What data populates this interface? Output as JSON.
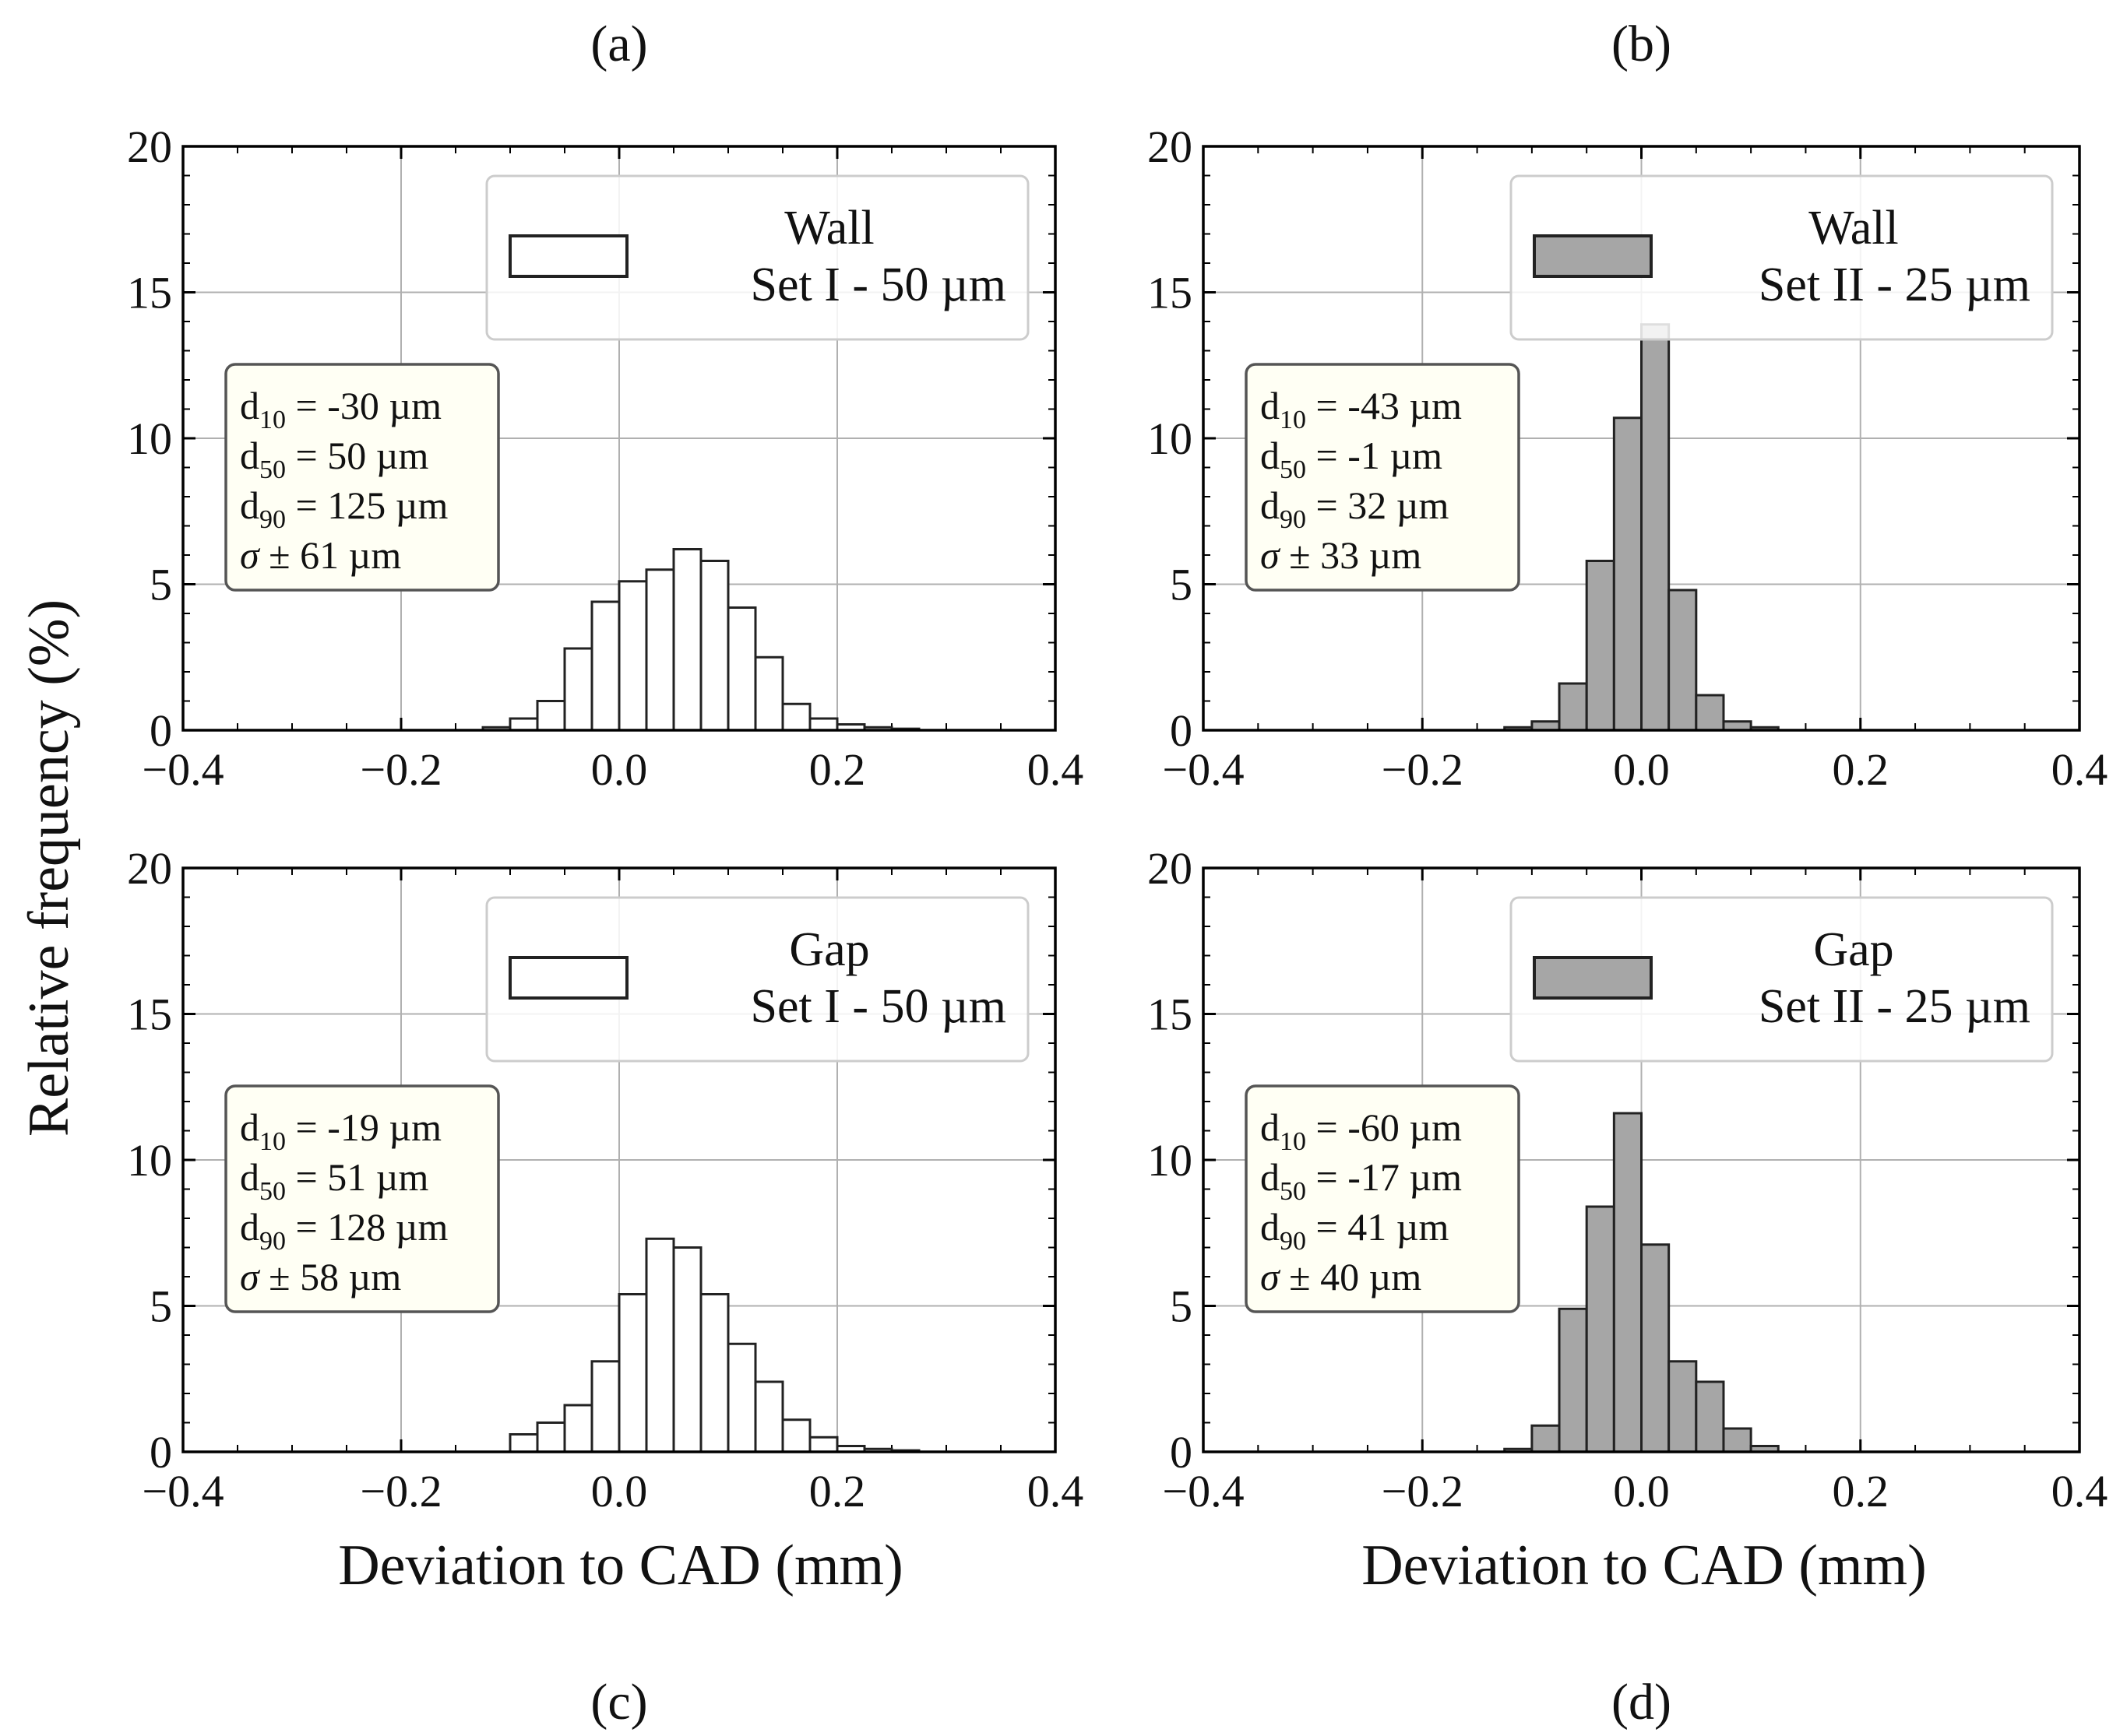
{
  "figure": {
    "ylabel": "Relative frequency (%)",
    "xlabel": "Deviation to CAD (mm)",
    "bin_width": 0.025,
    "colors": {
      "set1_fill": "#ffffff",
      "set2_fill": "#a6a6a6",
      "edge": "#222222",
      "grid": "#b0b0b0",
      "stats_box": "#fffff4"
    }
  },
  "chart_data": [
    {
      "type": "bar",
      "panel_label": "(a)",
      "legend": {
        "line1": "Wall",
        "line2": "Set I - 50 µm",
        "placement": "top-right",
        "fill": "set1"
      },
      "stats": {
        "d10_value": " = -30 µm",
        "d50_value": " = 50 µm",
        "d90_value": " = 125 µm",
        "sigma_value": " ± 61 µm"
      },
      "bin_starts": [
        -0.125,
        -0.1,
        -0.075,
        -0.05,
        -0.025,
        0.0,
        0.025,
        0.05,
        0.075,
        0.1,
        0.125,
        0.15,
        0.175,
        0.2,
        0.225,
        0.25
      ],
      "values": [
        0.1,
        0.4,
        1.0,
        2.8,
        4.4,
        5.1,
        5.5,
        6.2,
        5.8,
        4.2,
        2.5,
        0.9,
        0.4,
        0.2,
        0.1,
        0.05
      ],
      "xlim": [
        -0.4,
        0.4
      ],
      "ylim": [
        0,
        20
      ],
      "xticks": [
        "−0.4",
        "−0.2",
        "0.0",
        "0.2",
        "0.4"
      ],
      "yticks": [
        "0",
        "5",
        "10",
        "15",
        "20"
      ],
      "grid": true
    },
    {
      "type": "bar",
      "panel_label": "(b)",
      "legend": {
        "line1": "Wall",
        "line2": "Set II - 25 µm",
        "placement": "top-right",
        "fill": "set2"
      },
      "stats": {
        "d10_value": " = -43 µm",
        "d50_value": " = -1 µm",
        "d90_value": " = 32 µm",
        "sigma_value": " ± 33 µm"
      },
      "bin_starts": [
        -0.125,
        -0.1,
        -0.075,
        -0.05,
        -0.025,
        0.0,
        0.025,
        0.05,
        0.075,
        0.1
      ],
      "values": [
        0.1,
        0.3,
        1.6,
        5.8,
        10.7,
        13.9,
        4.8,
        1.2,
        0.3,
        0.1
      ],
      "xlim": [
        -0.4,
        0.4
      ],
      "ylim": [
        0,
        20
      ],
      "xticks": [
        "−0.4",
        "−0.2",
        "0.0",
        "0.2",
        "0.4"
      ],
      "yticks": [
        "0",
        "5",
        "10",
        "15",
        "20"
      ],
      "grid": true
    },
    {
      "type": "bar",
      "panel_label": "(c)",
      "legend": {
        "line1": "Gap",
        "line2": "Set I - 50 µm",
        "placement": "top-right",
        "fill": "set1"
      },
      "stats": {
        "d10_value": " = -19 µm",
        "d50_value": " = 51 µm",
        "d90_value": " = 128 µm",
        "sigma_value": " ± 58 µm"
      },
      "bin_starts": [
        -0.1,
        -0.075,
        -0.05,
        -0.025,
        0.0,
        0.025,
        0.05,
        0.075,
        0.1,
        0.125,
        0.15,
        0.175,
        0.2,
        0.225,
        0.25
      ],
      "values": [
        0.6,
        1.0,
        1.6,
        3.1,
        5.4,
        7.3,
        7.0,
        5.4,
        3.7,
        2.4,
        1.1,
        0.5,
        0.2,
        0.1,
        0.05
      ],
      "xlim": [
        -0.4,
        0.4
      ],
      "ylim": [
        0,
        20
      ],
      "xticks": [
        "−0.4",
        "−0.2",
        "0.0",
        "0.2",
        "0.4"
      ],
      "yticks": [
        "0",
        "5",
        "10",
        "15",
        "20"
      ],
      "grid": true
    },
    {
      "type": "bar",
      "panel_label": "(d)",
      "legend": {
        "line1": "Gap",
        "line2": "Set II - 25 µm",
        "placement": "top-right",
        "fill": "set2"
      },
      "stats": {
        "d10_value": " = -60 µm",
        "d50_value": " = -17 µm",
        "d90_value": " = 41 µm",
        "sigma_value": " ± 40 µm"
      },
      "bin_starts": [
        -0.125,
        -0.1,
        -0.075,
        -0.05,
        -0.025,
        0.0,
        0.025,
        0.05,
        0.075,
        0.1
      ],
      "values": [
        0.1,
        0.9,
        4.9,
        8.4,
        11.6,
        7.1,
        3.1,
        2.4,
        0.8,
        0.2
      ],
      "xlim": [
        -0.4,
        0.4
      ],
      "ylim": [
        0,
        20
      ],
      "xticks": [
        "−0.4",
        "−0.2",
        "0.0",
        "0.2",
        "0.4"
      ],
      "yticks": [
        "0",
        "5",
        "10",
        "15",
        "20"
      ],
      "grid": true
    }
  ]
}
